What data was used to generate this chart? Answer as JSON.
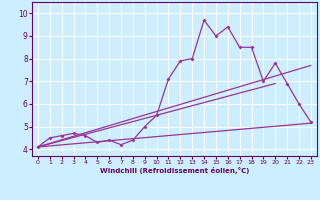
{
  "bg_color": "#cceeff",
  "grid_color": "#ffffff",
  "line_color": "#993399",
  "marker_color": "#993399",
  "xlabel": "Windchill (Refroidissement éolien,°C)",
  "xlabel_color": "#660066",
  "tick_color": "#660066",
  "spine_color": "#660066",
  "xlim": [
    -0.5,
    23.5
  ],
  "ylim": [
    3.7,
    10.5
  ],
  "yticks": [
    4,
    5,
    6,
    7,
    8,
    9,
    10
  ],
  "xticks": [
    0,
    1,
    2,
    3,
    4,
    5,
    6,
    7,
    8,
    9,
    10,
    11,
    12,
    13,
    14,
    15,
    16,
    17,
    18,
    19,
    20,
    21,
    22,
    23
  ],
  "series1_x": [
    0,
    1,
    2,
    3,
    4,
    5,
    6,
    7,
    8,
    9,
    10,
    11,
    12,
    13,
    14,
    15,
    16,
    17,
    18,
    19,
    20,
    21,
    22,
    23
  ],
  "series1_y": [
    4.1,
    4.5,
    4.6,
    4.7,
    4.6,
    4.3,
    4.4,
    4.2,
    4.4,
    5.0,
    5.5,
    7.1,
    7.9,
    8.0,
    9.7,
    9.0,
    9.4,
    8.5,
    8.5,
    7.0,
    7.8,
    6.9,
    6.0,
    5.2
  ],
  "series2_x": [
    0,
    23
  ],
  "series2_y": [
    4.1,
    7.7
  ],
  "series3_x": [
    0,
    20
  ],
  "series3_y": [
    4.1,
    6.9
  ],
  "series4_x": [
    0,
    23
  ],
  "series4_y": [
    4.1,
    5.15
  ]
}
